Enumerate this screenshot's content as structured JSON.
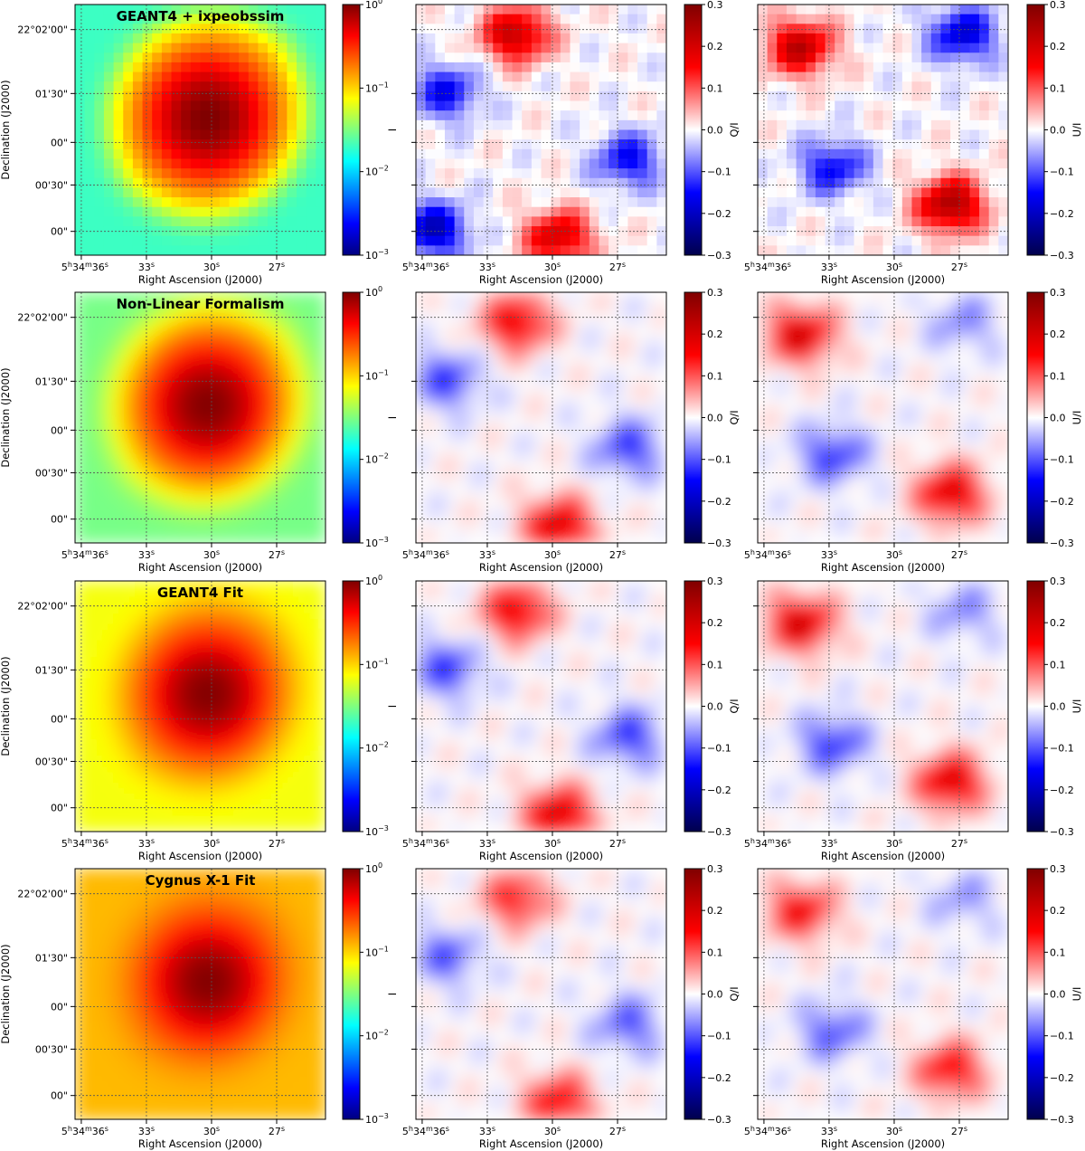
{
  "figure": {
    "row_titles": [
      "GEANT4 + ixpeobssim",
      "Non-Linear Formalism",
      "GEANT4 Fit",
      "Cygnus X-1 Fit"
    ],
    "x_axis": {
      "label": "Right Ascension (J2000)",
      "ticks": [
        {
          "h": "5",
          "m": "34",
          "s": "36"
        },
        {
          "s": "33"
        },
        {
          "s": "30"
        },
        {
          "s": "27"
        }
      ]
    },
    "y_axis": {
      "label": "Declination (J2000)",
      "ticks": [
        "22°02'00\"",
        "01'30\"",
        "00\"",
        "00'30\"",
        "00\""
      ]
    },
    "colorbars": {
      "intensity": {
        "label": "I",
        "scale": "log",
        "range": [
          0.001,
          1
        ],
        "ticks": [
          "10",
          "10",
          "10",
          "10"
        ],
        "exponents": [
          "0",
          "−1",
          "−2",
          "−3"
        ],
        "colormap": "jet"
      },
      "q": {
        "label": "Q/I",
        "range": [
          -0.3,
          0.3
        ],
        "ticks": [
          "0.3",
          "0.2",
          "0.1",
          "0.0",
          "−0.1",
          "−0.2",
          "−0.3"
        ],
        "colormap": "seismic"
      },
      "u": {
        "label": "U/I",
        "range": [
          -0.3,
          0.3
        ],
        "ticks": [
          "0.3",
          "0.2",
          "0.1",
          "0.0",
          "−0.1",
          "−0.2",
          "−0.3"
        ],
        "colormap": "seismic"
      }
    },
    "colors": {
      "jet_low": "#00007f",
      "jet_high": "#7f0000",
      "seismic_low": "#00004c",
      "seismic_mid": "#ffffff",
      "seismic_high": "#800000",
      "grid": "#555555"
    }
  },
  "chart_data": {
    "type": "heatmap",
    "layout": "4 rows x 3 columns",
    "columns": [
      "I",
      "Q/I",
      "U/I"
    ],
    "rows": [
      {
        "title": "GEANT4 + ixpeobssim",
        "pixelated": true,
        "background_level_I": 0.02,
        "peak_I": 1.0,
        "q_features": [
          {
            "where": "top-center",
            "value": 0.22
          },
          {
            "where": "left-middle",
            "value": -0.15
          },
          {
            "where": "bottom-center",
            "value": 0.2
          },
          {
            "where": "right-lower",
            "value": -0.15
          },
          {
            "where": "bottom-left",
            "value": -0.2
          }
        ],
        "u_features": [
          {
            "where": "top-left",
            "value": 0.22
          },
          {
            "where": "top-right",
            "value": -0.18
          },
          {
            "where": "left-lower",
            "value": -0.15
          },
          {
            "where": "bottom-right",
            "value": 0.25
          }
        ]
      },
      {
        "title": "Non-Linear Formalism",
        "pixelated": false,
        "background_level_I": 0.03,
        "peak_I": 1.0,
        "q_features": [
          {
            "where": "top-center",
            "value": 0.18
          },
          {
            "where": "left-middle",
            "value": -0.12
          },
          {
            "where": "bottom-center",
            "value": 0.2
          },
          {
            "where": "right-lower",
            "value": -0.12
          }
        ],
        "u_features": [
          {
            "where": "top-left",
            "value": 0.2
          },
          {
            "where": "top-right",
            "value": -0.07
          },
          {
            "where": "left-lower",
            "value": -0.12
          },
          {
            "where": "bottom-right",
            "value": 0.2
          }
        ]
      },
      {
        "title": "GEANT4 Fit",
        "pixelated": false,
        "background_level_I": 0.07,
        "peak_I": 1.0,
        "q_features": [
          {
            "where": "top-center",
            "value": 0.18
          },
          {
            "where": "left-middle",
            "value": -0.12
          },
          {
            "where": "bottom-center",
            "value": 0.2
          },
          {
            "where": "right-lower",
            "value": -0.12
          }
        ],
        "u_features": [
          {
            "where": "top-left",
            "value": 0.2
          },
          {
            "where": "top-right",
            "value": -0.07
          },
          {
            "where": "left-lower",
            "value": -0.12
          },
          {
            "where": "bottom-right",
            "value": 0.2
          }
        ]
      },
      {
        "title": "Cygnus X-1 Fit",
        "pixelated": false,
        "background_level_I": 0.12,
        "peak_I": 1.0,
        "q_features": [
          {
            "where": "top-center",
            "value": 0.14
          },
          {
            "where": "left-middle",
            "value": -0.1
          },
          {
            "where": "bottom-center",
            "value": 0.16
          },
          {
            "where": "right-lower",
            "value": -0.1
          }
        ],
        "u_features": [
          {
            "where": "top-left",
            "value": 0.16
          },
          {
            "where": "top-right",
            "value": -0.06
          },
          {
            "where": "left-lower",
            "value": -0.1
          },
          {
            "where": "bottom-right",
            "value": 0.16
          }
        ]
      }
    ]
  }
}
